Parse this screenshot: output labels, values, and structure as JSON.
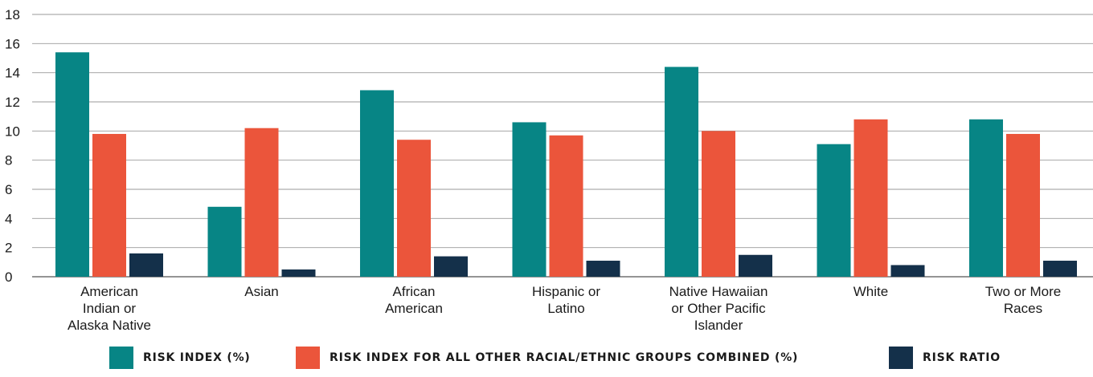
{
  "chart_data": {
    "type": "bar",
    "categories": [
      [
        "American",
        "Indian or",
        "Alaska Native"
      ],
      [
        "Asian"
      ],
      [
        "African",
        "American"
      ],
      [
        "Hispanic or",
        "Latino"
      ],
      [
        "Native Hawaiian",
        "or Other Pacific",
        "Islander"
      ],
      [
        "White"
      ],
      [
        "Two or More",
        "Races"
      ]
    ],
    "series": [
      {
        "name": "RISK INDEX (%)",
        "color": "#078585",
        "values": [
          15.4,
          4.8,
          12.8,
          10.6,
          14.4,
          9.1,
          10.8
        ]
      },
      {
        "name": "RISK INDEX FOR ALL OTHER RACIAL/ETHNIC GROUPS COMBINED (%)",
        "color": "#eb553b",
        "values": [
          9.8,
          10.2,
          9.4,
          9.7,
          10.0,
          10.8,
          9.8
        ]
      },
      {
        "name": "RISK RATIO",
        "color": "#14304a",
        "values": [
          1.6,
          0.5,
          1.4,
          1.1,
          1.5,
          0.8,
          1.1
        ]
      }
    ],
    "yticks": [
      "0",
      "2",
      "4",
      "6",
      "8",
      "10",
      "12",
      "14",
      "16",
      "18"
    ],
    "ylim": [
      0,
      18
    ],
    "grid": true,
    "legend": "bottom-center"
  }
}
